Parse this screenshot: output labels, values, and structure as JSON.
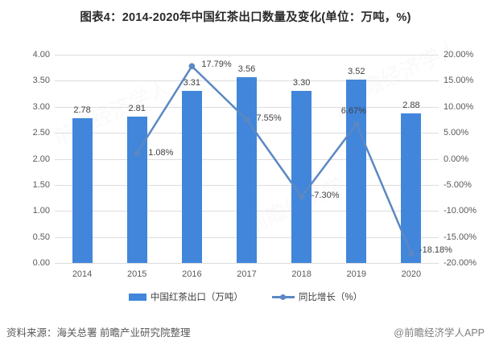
{
  "title": "图表4：2014-2020年中国红茶出口数量及变化(单位：万吨，%)",
  "chart_data": {
    "type": "bar+line combo, dual axis",
    "categories": [
      "2014",
      "2015",
      "2016",
      "2017",
      "2018",
      "2019",
      "2020"
    ],
    "series": [
      {
        "name": "中国红茶出口（万吨）",
        "type": "bar",
        "axis": "left",
        "values": [
          2.78,
          2.81,
          3.31,
          3.56,
          3.3,
          3.52,
          2.88
        ],
        "labels": [
          "2.78",
          "2.81",
          "3.31",
          "3.56",
          "3.30",
          "3.52",
          "2.88"
        ],
        "color": "#4186db"
      },
      {
        "name": "同比增长（%）",
        "type": "line",
        "axis": "right",
        "values": [
          null,
          1.08,
          17.79,
          7.55,
          -7.3,
          6.67,
          -18.18
        ],
        "labels": [
          null,
          "1.08%",
          "17.79%",
          "7.55%",
          "-7.30%",
          "6.67%",
          "-18.18%"
        ],
        "color": "#5b88c2"
      }
    ],
    "left_axis": {
      "min": 0,
      "max": 4,
      "step": 0.5,
      "tick_labels": [
        "4.00",
        "3.50",
        "3.00",
        "2.50",
        "2.00",
        "1.50",
        "1.00",
        "0.50",
        "0.00"
      ]
    },
    "right_axis": {
      "min": -20,
      "max": 20,
      "step": 5,
      "tick_labels": [
        "20.00%",
        "15.00%",
        "10.00%",
        "5.00%",
        "0.00%",
        "-5.00%",
        "-10.00%",
        "-15.00%",
        "-20.00%"
      ]
    },
    "grid": true,
    "legend_position": "bottom"
  },
  "legend": {
    "bar_label": "中国红茶出口（万吨）",
    "line_label": "同比增长（%）"
  },
  "footer": {
    "source": "资料来源：海关总署 前瞻产业研究院整理",
    "credit": "@前瞻经济学人APP"
  }
}
